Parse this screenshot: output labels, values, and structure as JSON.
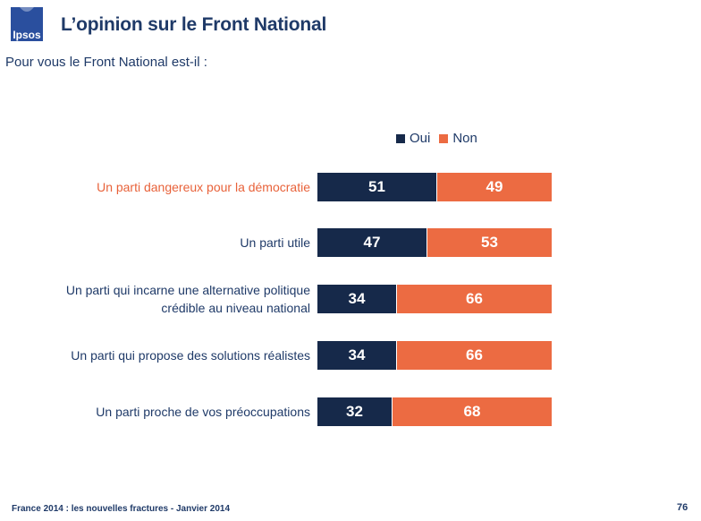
{
  "header": {
    "logo_text": "Ipsos",
    "title": "L’opinion sur le Front National",
    "subtitle": "Pour vous le Front National est-il :"
  },
  "colors": {
    "oui": "#16294a",
    "non": "#ec6b42",
    "highlight": "#e8623a",
    "logo": "#2a4f9e"
  },
  "chart_data": {
    "type": "bar",
    "orientation": "horizontal",
    "stacked": true,
    "categories": [
      "Un parti dangereux pour la démocratie",
      "Un parti utile",
      "Un parti qui incarne une alternative politique crédible au niveau national",
      "Un parti qui propose des solutions réalistes",
      "Un parti proche de vos préoccupations"
    ],
    "category_lines": [
      [
        "Un parti dangereux pour la démocratie"
      ],
      [
        "Un parti utile"
      ],
      [
        "Un parti qui incarne une alternative politique",
        "crédible au niveau national"
      ],
      [
        "Un parti qui propose des solutions réalistes"
      ],
      [
        "Un parti proche de vos préoccupations"
      ]
    ],
    "highlighted_category": 0,
    "series": [
      {
        "name": "Oui",
        "values": [
          51,
          47,
          34,
          34,
          32
        ]
      },
      {
        "name": "Non",
        "values": [
          49,
          53,
          66,
          66,
          68
        ]
      }
    ],
    "xlim": [
      0,
      100
    ],
    "legend": "top"
  },
  "footer": {
    "source": "France 2014 : les nouvelles fractures - Janvier 2014",
    "page": "76"
  }
}
